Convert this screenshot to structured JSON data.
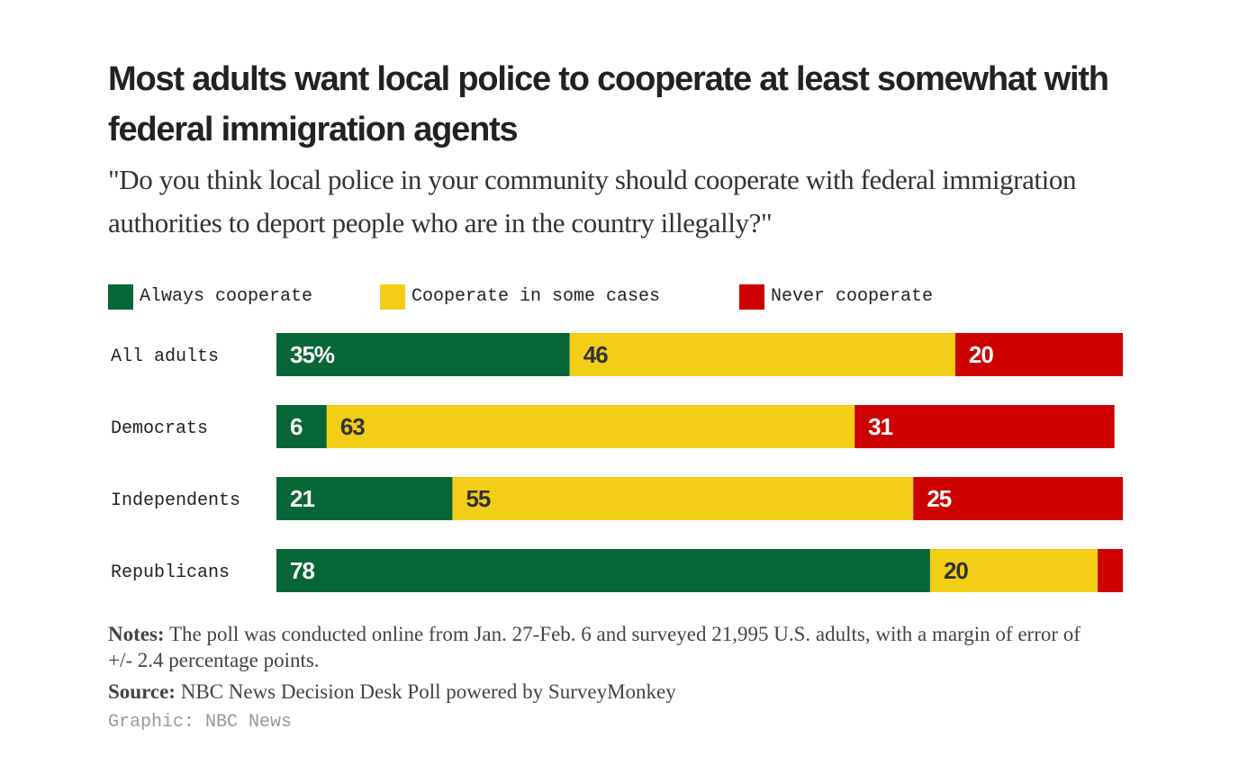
{
  "title": "Most adults want local police to cooperate at least somewhat with federal immigration agents",
  "subtitle": "\"Do you think local police in your community should cooperate with federal immigration authorities to deport people who are in the country illegally?\"",
  "legend": [
    {
      "label": "Always cooperate",
      "color": "#066636"
    },
    {
      "label": "Cooperate in some cases",
      "color": "#f3ce16"
    },
    {
      "label": "Never cooperate",
      "color": "#cc0000"
    }
  ],
  "chart_data": {
    "type": "bar",
    "orientation": "horizontal",
    "stacked": true,
    "categories": [
      "All adults",
      "Democrats",
      "Independents",
      "Republicans"
    ],
    "series": [
      {
        "name": "Always cooperate",
        "values": [
          35,
          6,
          21,
          78
        ],
        "color": "#066636",
        "label_color": "#ffffff"
      },
      {
        "name": "Cooperate in some cases",
        "values": [
          46,
          63,
          55,
          20
        ],
        "color": "#f3ce16",
        "label_color": "#333333"
      },
      {
        "name": "Never cooperate",
        "values": [
          20,
          31,
          25,
          3
        ],
        "color": "#cc0000",
        "label_color": "#ffffff"
      }
    ],
    "value_labels": [
      [
        "35%",
        "46",
        "20"
      ],
      [
        "6",
        "63",
        "31"
      ],
      [
        "21",
        "55",
        "25"
      ],
      [
        "78",
        "20",
        ""
      ]
    ],
    "xlim": [
      0,
      101
    ]
  },
  "notes_label": "Notes:",
  "notes_text": "The poll was conducted online from Jan. 27-Feb. 6 and surveyed 21,995 U.S. adults, with a margin of error of +/- 2.4 percentage points.",
  "source_label": "Source:",
  "source_text": "NBC News Decision Desk Poll powered by SurveyMonkey",
  "credit": "Graphic: NBC News"
}
